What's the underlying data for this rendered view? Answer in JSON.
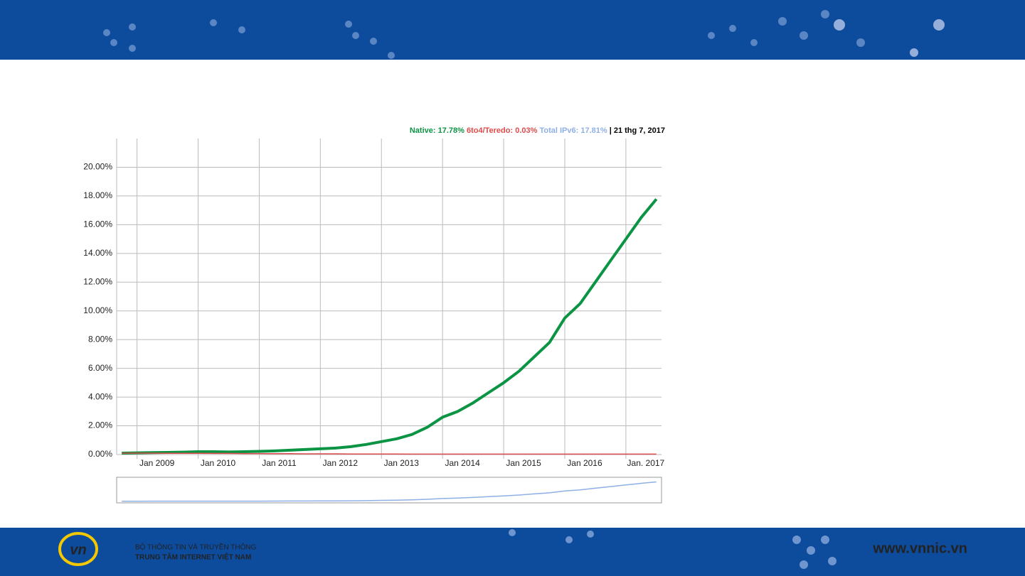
{
  "chart_data": {
    "type": "line",
    "x": [
      "2008-10",
      "2009-01",
      "2009-04",
      "2009-07",
      "2009-10",
      "2010-01",
      "2010-04",
      "2010-07",
      "2010-10",
      "2011-01",
      "2011-04",
      "2011-07",
      "2011-10",
      "2012-01",
      "2012-04",
      "2012-07",
      "2012-10",
      "2013-01",
      "2013-04",
      "2013-07",
      "2013-10",
      "2014-01",
      "2014-04",
      "2014-07",
      "2014-10",
      "2015-01",
      "2015-04",
      "2015-07",
      "2015-10",
      "2016-01",
      "2016-04",
      "2016-07",
      "2016-10",
      "2017-01",
      "2017-04",
      "2017-07"
    ],
    "series": [
      {
        "name": "Native: 17.78%",
        "color": "#0b9444",
        "values": [
          0.1,
          0.12,
          0.14,
          0.15,
          0.17,
          0.2,
          0.2,
          0.18,
          0.2,
          0.22,
          0.25,
          0.3,
          0.35,
          0.4,
          0.45,
          0.55,
          0.7,
          0.9,
          1.1,
          1.4,
          1.9,
          2.6,
          3.0,
          3.6,
          4.3,
          5.0,
          5.8,
          6.8,
          7.8,
          9.5,
          10.5,
          12,
          13.5,
          15,
          16.5,
          17.78
        ]
      },
      {
        "name": "6to4/Teredo: 0.03%",
        "color": "#dc4b4b",
        "values": [
          0.1,
          0.1,
          0.1,
          0.09,
          0.09,
          0.09,
          0.08,
          0.08,
          0.07,
          0.07,
          0.06,
          0.06,
          0.05,
          0.05,
          0.05,
          0.04,
          0.04,
          0.04,
          0.04,
          0.03,
          0.03,
          0.03,
          0.03,
          0.03,
          0.03,
          0.03,
          0.03,
          0.03,
          0.03,
          0.03,
          0.03,
          0.03,
          0.03,
          0.03,
          0.03,
          0.03
        ]
      },
      {
        "name": "Total IPv6: 17.81%",
        "color": "#8fb0e6",
        "values": [
          0.2,
          0.22,
          0.24,
          0.24,
          0.26,
          0.29,
          0.28,
          0.26,
          0.27,
          0.29,
          0.31,
          0.36,
          0.4,
          0.45,
          0.5,
          0.59,
          0.74,
          0.94,
          1.14,
          1.43,
          1.93,
          2.63,
          3.03,
          3.63,
          4.33,
          5.03,
          5.83,
          6.83,
          7.83,
          9.53,
          10.53,
          12.03,
          13.53,
          15.03,
          16.53,
          17.81
        ]
      }
    ],
    "readout_date": "| 21 thg 7, 2017",
    "xlim": [
      "2008-09",
      "2017-08"
    ],
    "xticks": [
      {
        "value": "2009-01",
        "label": "Jan 2009"
      },
      {
        "value": "2010-01",
        "label": "Jan 2010"
      },
      {
        "value": "2011-01",
        "label": "Jan 2011"
      },
      {
        "value": "2012-01",
        "label": "Jan 2012"
      },
      {
        "value": "2013-01",
        "label": "Jan 2013"
      },
      {
        "value": "2014-01",
        "label": "Jan 2014"
      },
      {
        "value": "2015-01",
        "label": "Jan 2015"
      },
      {
        "value": "2016-01",
        "label": "Jan 2016"
      },
      {
        "value": "2017-01",
        "label": "Jan. 2017"
      }
    ],
    "ylim": [
      0,
      22
    ],
    "yticks": [
      {
        "value": 0,
        "label": "0.00%"
      },
      {
        "value": 2,
        "label": "2.00%"
      },
      {
        "value": 4,
        "label": "4.00%"
      },
      {
        "value": 6,
        "label": "6.00%"
      },
      {
        "value": 8,
        "label": "8.00%"
      },
      {
        "value": 10,
        "label": "10.00%"
      },
      {
        "value": 12,
        "label": "12.00%"
      },
      {
        "value": 14,
        "label": "14.00%"
      },
      {
        "value": 16,
        "label": "16.00%"
      },
      {
        "value": 18,
        "label": "18.00%"
      },
      {
        "value": 20,
        "label": "20.00%"
      }
    ],
    "grid": true
  },
  "footer": {
    "ministry": "BỘ THÔNG TIN VÀ TRUYỀN THÔNG",
    "center": "TRUNG TÂM INTERNET VIỆT NAM",
    "website": "www.vnnic.vn"
  }
}
